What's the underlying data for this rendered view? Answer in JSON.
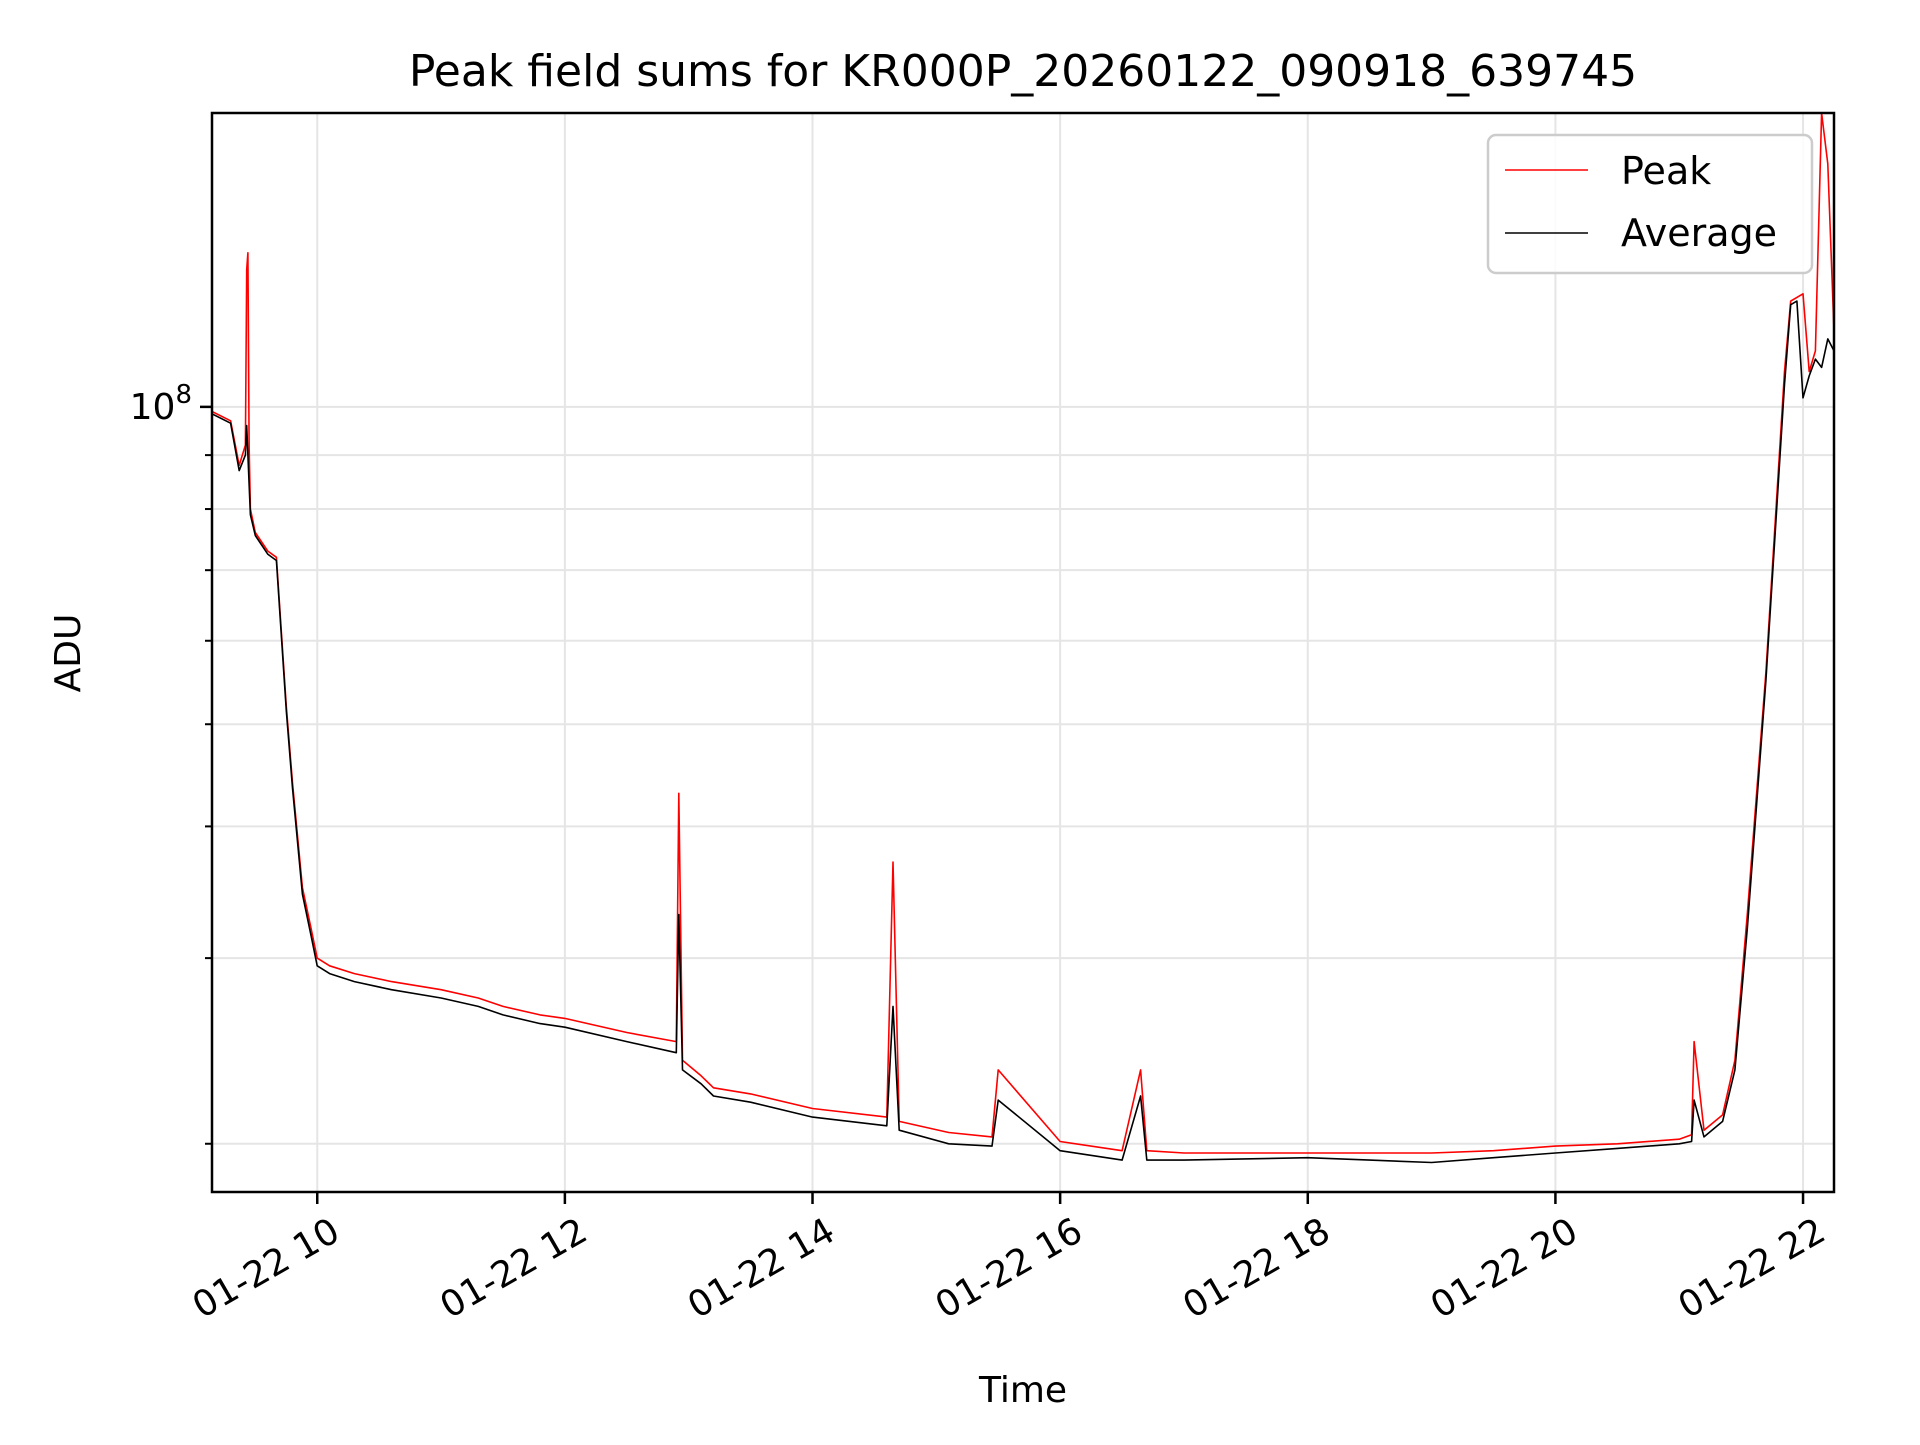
{
  "chart_data": {
    "type": "line",
    "title": "Peak field sums for KR000P_20260122_090918_639745",
    "xlabel": "Time",
    "ylabel": "ADU",
    "x_unit": "hours on 01-22",
    "x_ticks": [
      {
        "label": "01-22 10",
        "value": 10
      },
      {
        "label": "01-22 12",
        "value": 12
      },
      {
        "label": "01-22 14",
        "value": 14
      },
      {
        "label": "01-22 16",
        "value": 16
      },
      {
        "label": "01-22 18",
        "value": 18
      },
      {
        "label": "01-22 20",
        "value": 20
      },
      {
        "label": "01-22 22",
        "value": 22
      }
    ],
    "xlim": [
      9.15,
      22.25
    ],
    "y_scale": "log",
    "ylim": [
      18000000,
      190000000
    ],
    "y_major_ticks": [
      {
        "label_base": "10",
        "label_exp": "8",
        "value": 100000000
      }
    ],
    "y_minor_ticks": [
      20000000,
      30000000,
      40000000,
      50000000,
      60000000,
      70000000,
      80000000,
      90000000
    ],
    "grid": true,
    "legend": {
      "placement": "top-right",
      "entries": [
        "Peak",
        "Average"
      ]
    },
    "series": [
      {
        "name": "Peak",
        "color": "#ff0000",
        "x": [
          9.15,
          9.3,
          9.37,
          9.42,
          9.43,
          9.44,
          9.45,
          9.46,
          9.5,
          9.6,
          9.67,
          9.75,
          9.8,
          9.88,
          9.95,
          10.0,
          10.1,
          10.3,
          10.6,
          11.0,
          11.3,
          11.5,
          11.8,
          12.0,
          12.5,
          12.9,
          12.92,
          12.95,
          13.1,
          13.2,
          13.5,
          14.0,
          14.6,
          14.65,
          14.7,
          15.1,
          15.45,
          15.5,
          16.0,
          16.5,
          16.65,
          16.7,
          17.0,
          18.0,
          18.5,
          19.0,
          19.5,
          20.0,
          20.5,
          21.0,
          21.1,
          21.12,
          21.2,
          21.35,
          21.45,
          21.55,
          21.7,
          21.85,
          21.9,
          21.95,
          22.0,
          22.05,
          22.1,
          22.15,
          22.2,
          22.25
        ],
        "y": [
          99000000,
          97000000,
          88000000,
          92000000,
          135000000,
          140000000,
          92000000,
          80000000,
          76000000,
          73000000,
          72000000,
          52000000,
          44000000,
          35000000,
          32000000,
          30000000,
          29500000,
          29000000,
          28500000,
          28000000,
          27500000,
          27000000,
          26500000,
          26300000,
          25500000,
          25000000,
          43000000,
          24000000,
          23200000,
          22600000,
          22300000,
          21600000,
          21200000,
          37000000,
          21000000,
          20500000,
          20300000,
          23500000,
          20100000,
          19700000,
          23500000,
          19700000,
          19600000,
          19600000,
          19600000,
          19600000,
          19700000,
          19900000,
          20000000,
          20200000,
          20400000,
          25000000,
          20600000,
          21300000,
          24000000,
          33000000,
          56000000,
          108000000,
          126000000,
          127000000,
          128000000,
          108000000,
          113000000,
          190000000,
          170000000,
          118000000
        ]
      },
      {
        "name": "Average",
        "color": "#000000",
        "x": [
          9.15,
          9.3,
          9.37,
          9.42,
          9.43,
          9.44,
          9.46,
          9.5,
          9.6,
          9.67,
          9.75,
          9.8,
          9.88,
          9.95,
          10.0,
          10.1,
          10.3,
          10.6,
          11.0,
          11.3,
          11.5,
          11.8,
          12.0,
          12.5,
          12.9,
          12.92,
          12.95,
          13.1,
          13.2,
          13.5,
          14.0,
          14.6,
          14.65,
          14.7,
          15.1,
          15.45,
          15.5,
          16.0,
          16.5,
          16.65,
          16.7,
          17.0,
          18.0,
          18.5,
          19.0,
          19.5,
          20.0,
          20.5,
          21.0,
          21.1,
          21.12,
          21.2,
          21.35,
          21.45,
          21.55,
          21.7,
          21.85,
          21.9,
          21.95,
          22.0,
          22.05,
          22.1,
          22.15,
          22.2,
          22.25
        ],
        "y": [
          98500000,
          96500000,
          87000000,
          90000000,
          96000000,
          90000000,
          79000000,
          75500000,
          72500000,
          71500000,
          51500000,
          43500000,
          34500000,
          31500000,
          29500000,
          29000000,
          28500000,
          28000000,
          27500000,
          27000000,
          26500000,
          26000000,
          25800000,
          25000000,
          24400000,
          33000000,
          23500000,
          22800000,
          22200000,
          21900000,
          21200000,
          20800000,
          27000000,
          20600000,
          20000000,
          19900000,
          22000000,
          19700000,
          19300000,
          22200000,
          19300000,
          19300000,
          19400000,
          19300000,
          19200000,
          19400000,
          19600000,
          19800000,
          20000000,
          20100000,
          22000000,
          20300000,
          21000000,
          23500000,
          32000000,
          55000000,
          105000000,
          125000000,
          126000000,
          102000000,
          107000000,
          111000000,
          109000000,
          116000000,
          113000000
        ]
      }
    ]
  }
}
